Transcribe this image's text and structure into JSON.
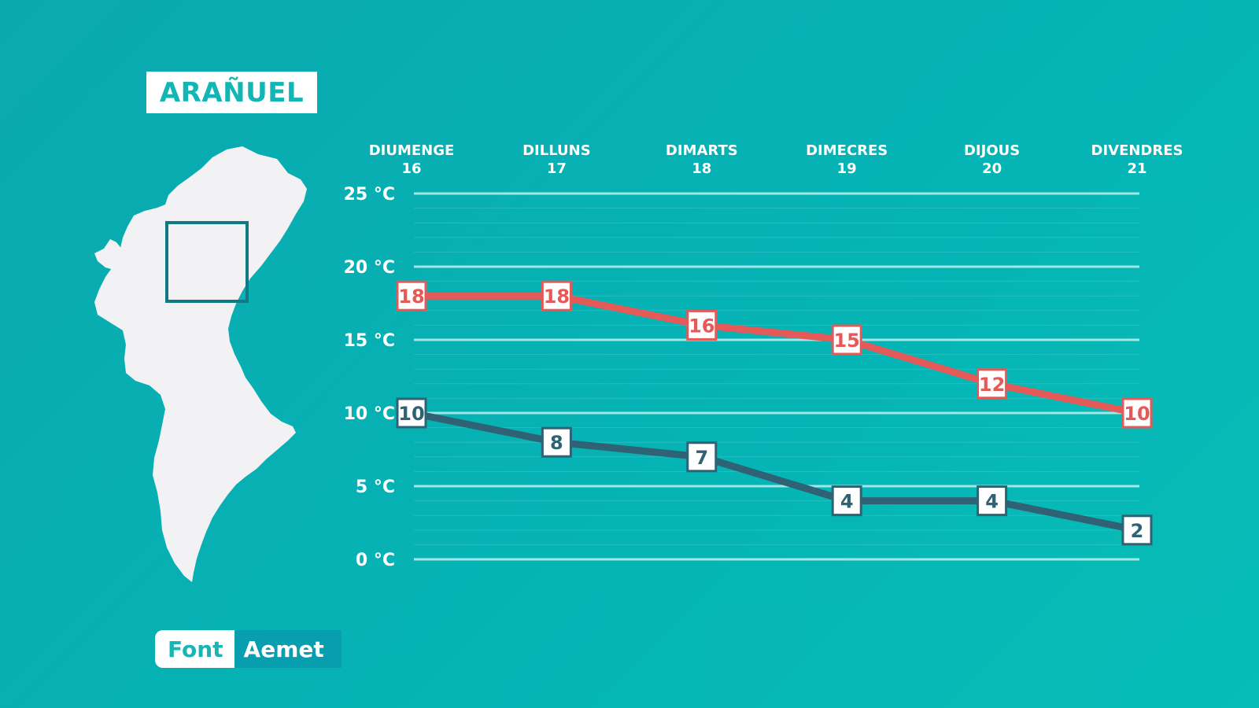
{
  "title": "ARAÑUEL",
  "source": {
    "label": "Font",
    "value": "Aemet"
  },
  "colors": {
    "max_line": "#e45a58",
    "min_line": "#2f6274",
    "grid": "#bdf0ee",
    "text": "#ffffff",
    "map_fill": "#f2f2f4",
    "map_frame": "#107a82"
  },
  "chart_data": {
    "type": "line",
    "categories": [
      {
        "day": "DIUMENGE",
        "date": "16"
      },
      {
        "day": "DILLUNS",
        "date": "17"
      },
      {
        "day": "DIMARTS",
        "date": "18"
      },
      {
        "day": "DIMECRES",
        "date": "19"
      },
      {
        "day": "DIJOUS",
        "date": "20"
      },
      {
        "day": "DIVENDRES",
        "date": "21"
      }
    ],
    "series": [
      {
        "values": [
          18,
          18,
          16,
          15,
          12,
          10
        ],
        "color": "#e45a58"
      },
      {
        "values": [
          10,
          8,
          7,
          4,
          4,
          2
        ],
        "color": "#2f6274"
      }
    ],
    "yticks": [
      {
        "value": 25,
        "label": "25 °C"
      },
      {
        "value": 20,
        "label": "20 °C"
      },
      {
        "value": 15,
        "label": "15 °C"
      },
      {
        "value": 10,
        "label": "10 °C"
      },
      {
        "value": 5,
        "label": "5 °C"
      },
      {
        "value": 0,
        "label": "0 °C"
      }
    ],
    "ylim": [
      0,
      25
    ],
    "grid": true,
    "legend": "none"
  }
}
